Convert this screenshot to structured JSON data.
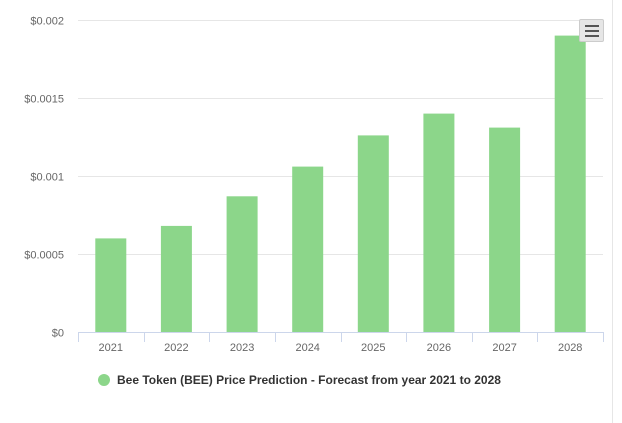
{
  "colors": {
    "bar": "#8cd68a",
    "grid": "#e6e6e6",
    "axis": "#ccd6eb",
    "text": "#666666",
    "legend_marker": "#8cd68a"
  },
  "menu": {
    "icon": "hamburger-menu-icon"
  },
  "chart_data": {
    "type": "bar",
    "categories": [
      "2021",
      "2022",
      "2023",
      "2024",
      "2025",
      "2026",
      "2027",
      "2028"
    ],
    "series": [
      {
        "name": "Bee Token (BEE) Price Prediction - Forecast from year 2021 to 2028",
        "values": [
          0.0006,
          0.00068,
          0.00087,
          0.00106,
          0.00126,
          0.0014,
          0.00131,
          0.0019
        ]
      }
    ],
    "title": "",
    "xlabel": "",
    "ylabel": "",
    "ylim": [
      0,
      0.002
    ],
    "yticks": [
      0,
      0.0005,
      0.001,
      0.0015,
      0.002
    ],
    "ytick_labels": [
      "$0",
      "$0.0005",
      "$0.001",
      "$0.0015",
      "$0.002"
    ],
    "grid": true,
    "legend_position": "bottom"
  }
}
